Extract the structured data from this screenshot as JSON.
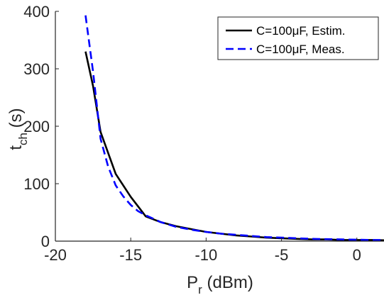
{
  "chart_data": {
    "type": "line",
    "xlabel": {
      "main": "P",
      "sub": "r",
      "unit": " (dBm)"
    },
    "ylabel": {
      "main": "t",
      "sub": "ch",
      "unit": " (s)"
    },
    "xlim": [
      -20,
      1.8
    ],
    "ylim": [
      0,
      400
    ],
    "xticks": [
      -20,
      -15,
      -10,
      -5,
      0
    ],
    "yticks": [
      0,
      100,
      200,
      300,
      400
    ],
    "xtick_labels": [
      "-20",
      "-15",
      "-10",
      "-5",
      "0"
    ],
    "ytick_labels": [
      "0",
      "100",
      "200",
      "300",
      "400"
    ],
    "grid": false,
    "legend_position": "top-right",
    "series": [
      {
        "name": "C=100μF, Estim.",
        "color": "#000000",
        "style": "solid",
        "x": [
          -18,
          -17.5,
          -17,
          -16,
          -15,
          -14,
          -13,
          -12,
          -11,
          -10,
          -9,
          -8,
          -7,
          -6,
          -5,
          -4,
          -3,
          -2,
          -1,
          0,
          1,
          1.8
        ],
        "y": [
          330,
          270,
          190,
          117,
          77,
          43,
          33,
          26,
          21,
          16,
          13,
          10,
          8,
          6,
          5,
          4,
          3,
          3,
          2,
          2,
          2,
          1.5
        ]
      },
      {
        "name": "C=100μF, Meas.",
        "color": "#0000ff",
        "style": "dashed",
        "x": [
          -18,
          -17.5,
          -17,
          -16.5,
          -16,
          -15.5,
          -15,
          -14.5,
          -14,
          -13,
          -12,
          -11,
          -10,
          -9,
          -8,
          -7,
          -6,
          -5,
          -4,
          -3,
          -2,
          -1,
          0,
          1,
          1.8
        ],
        "y": [
          393,
          295,
          178,
          130,
          97,
          78,
          63,
          52,
          45,
          33,
          25,
          20,
          16,
          13,
          11,
          9,
          7,
          6,
          5,
          4,
          3.5,
          3,
          2.5,
          2,
          2
        ]
      }
    ]
  }
}
